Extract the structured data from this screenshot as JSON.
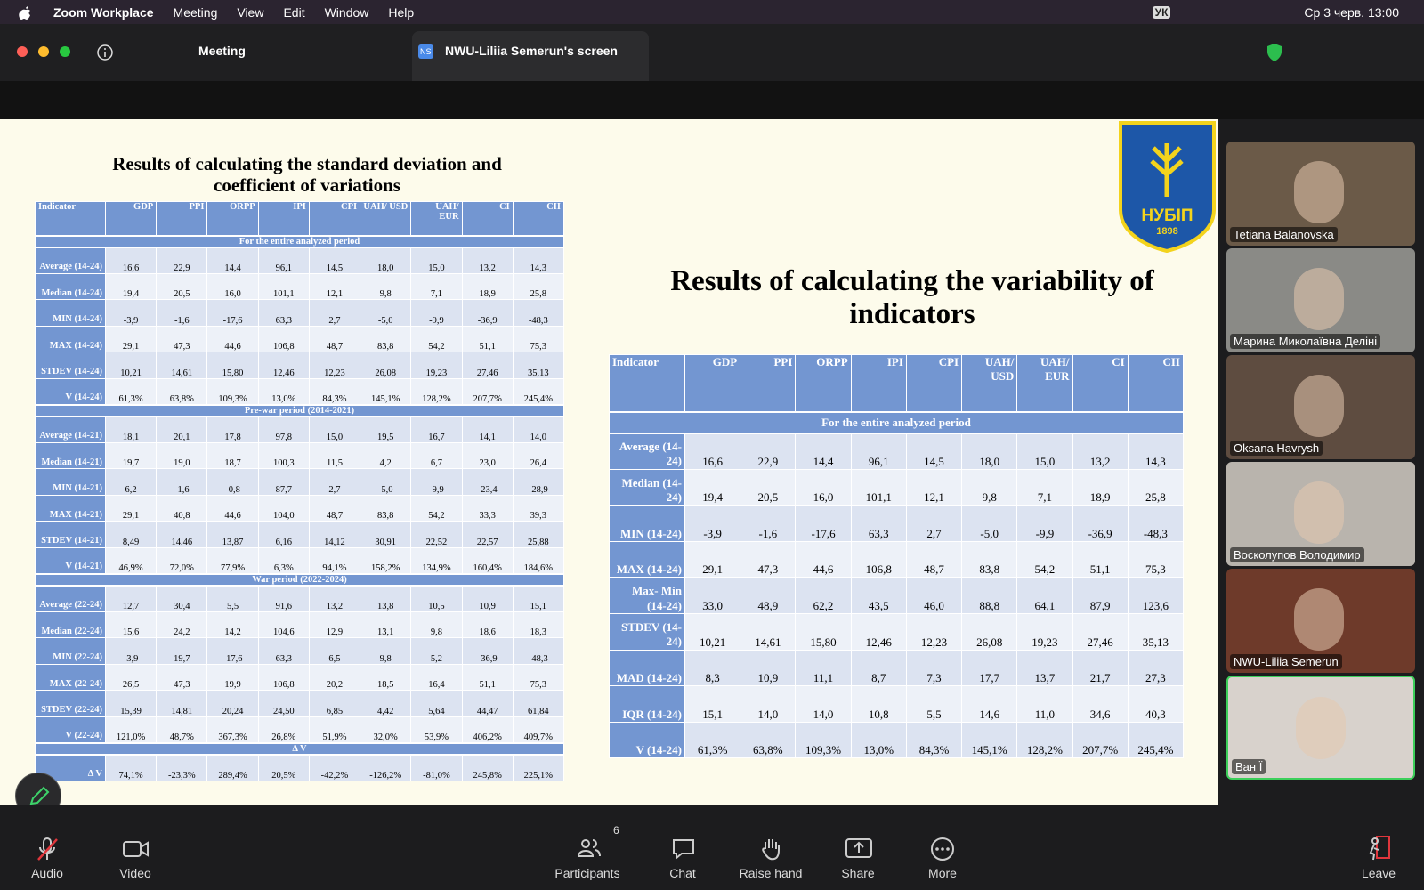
{
  "menu_bar": {
    "app": "Zoom Workplace",
    "items": [
      "Meeting",
      "View",
      "Edit",
      "Window",
      "Help"
    ],
    "keyboard": "УК",
    "datetime": "Ср 3 черв. 13:00"
  },
  "toolbar": {
    "meeting": "Meeting",
    "tab_badge": "NS",
    "share_tab": "NWU-Liliia Semerun's screen"
  },
  "slide": {
    "logo": {
      "name": "НУБІП",
      "year": "1898"
    },
    "left": {
      "title": "Results of calculating the standard deviation and coefficient of variations",
      "headers": [
        "Indicator",
        "GDP",
        "PPI",
        "ORPP",
        "IPI",
        "CPI",
        "UAH/ USD",
        "UAH/ EUR",
        "CI",
        "CII"
      ],
      "sections": [
        {
          "title": "For the entire analyzed period",
          "rows": [
            [
              "Average (14-24)",
              "16,6",
              "22,9",
              "14,4",
              "96,1",
              "14,5",
              "18,0",
              "15,0",
              "13,2",
              "14,3"
            ],
            [
              "Median (14-24)",
              "19,4",
              "20,5",
              "16,0",
              "101,1",
              "12,1",
              "9,8",
              "7,1",
              "18,9",
              "25,8"
            ],
            [
              "MIN (14-24)",
              "-3,9",
              "-1,6",
              "-17,6",
              "63,3",
              "2,7",
              "-5,0",
              "-9,9",
              "-36,9",
              "-48,3"
            ],
            [
              "MAX (14-24)",
              "29,1",
              "47,3",
              "44,6",
              "106,8",
              "48,7",
              "83,8",
              "54,2",
              "51,1",
              "75,3"
            ],
            [
              "STDEV (14-24)",
              "10,21",
              "14,61",
              "15,80",
              "12,46",
              "12,23",
              "26,08",
              "19,23",
              "27,46",
              "35,13"
            ],
            [
              "V (14-24)",
              "61,3%",
              "63,8%",
              "109,3%",
              "13,0%",
              "84,3%",
              "145,1%",
              "128,2%",
              "207,7%",
              "245,4%"
            ]
          ]
        },
        {
          "title": "Pre-war period (2014-2021)",
          "rows": [
            [
              "Average (14-21)",
              "18,1",
              "20,1",
              "17,8",
              "97,8",
              "15,0",
              "19,5",
              "16,7",
              "14,1",
              "14,0"
            ],
            [
              "Median (14-21)",
              "19,7",
              "19,0",
              "18,7",
              "100,3",
              "11,5",
              "4,2",
              "6,7",
              "23,0",
              "26,4"
            ],
            [
              "MIN (14-21)",
              "6,2",
              "-1,6",
              "-0,8",
              "87,7",
              "2,7",
              "-5,0",
              "-9,9",
              "-23,4",
              "-28,9"
            ],
            [
              "MAX (14-21)",
              "29,1",
              "40,8",
              "44,6",
              "104,0",
              "48,7",
              "83,8",
              "54,2",
              "33,3",
              "39,3"
            ],
            [
              "STDEV (14-21)",
              "8,49",
              "14,46",
              "13,87",
              "6,16",
              "14,12",
              "30,91",
              "22,52",
              "22,57",
              "25,88"
            ],
            [
              "V (14-21)",
              "46,9%",
              "72,0%",
              "77,9%",
              "6,3%",
              "94,1%",
              "158,2%",
              "134,9%",
              "160,4%",
              "184,6%"
            ]
          ]
        },
        {
          "title": "War period (2022-2024)",
          "rows": [
            [
              "Average (22-24)",
              "12,7",
              "30,4",
              "5,5",
              "91,6",
              "13,2",
              "13,8",
              "10,5",
              "10,9",
              "15,1"
            ],
            [
              "Median (22-24)",
              "15,6",
              "24,2",
              "14,2",
              "104,6",
              "12,9",
              "13,1",
              "9,8",
              "18,6",
              "18,3"
            ],
            [
              "MIN (22-24)",
              "-3,9",
              "19,7",
              "-17,6",
              "63,3",
              "6,5",
              "9,8",
              "5,2",
              "-36,9",
              "-48,3"
            ],
            [
              "MAX (22-24)",
              "26,5",
              "47,3",
              "19,9",
              "106,8",
              "20,2",
              "18,5",
              "16,4",
              "51,1",
              "75,3"
            ],
            [
              "STDEV (22-24)",
              "15,39",
              "14,81",
              "20,24",
              "24,50",
              "6,85",
              "4,42",
              "5,64",
              "44,47",
              "61,84"
            ],
            [
              "V (22-24)",
              "121,0%",
              "48,7%",
              "367,3%",
              "26,8%",
              "51,9%",
              "32,0%",
              "53,9%",
              "406,2%",
              "409,7%"
            ]
          ]
        },
        {
          "title": "Δ V",
          "rows": [
            [
              "Δ V",
              "74,1%",
              "-23,3%",
              "289,4%",
              "20,5%",
              "-42,2%",
              "-126,2%",
              "-81,0%",
              "245,8%",
              "225,1%"
            ]
          ]
        }
      ]
    },
    "right": {
      "title": "Results of calculating the variability of indicators",
      "headers": [
        "Indicator",
        "GDP",
        "PPI",
        "ORPP",
        "IPI",
        "CPI",
        "UAH/ USD",
        "UAH/ EUR",
        "CI",
        "CII"
      ],
      "sections": [
        {
          "title": "For the entire analyzed period",
          "rows": [
            [
              "Average (14-24)",
              "16,6",
              "22,9",
              "14,4",
              "96,1",
              "14,5",
              "18,0",
              "15,0",
              "13,2",
              "14,3"
            ],
            [
              "Median (14-24)",
              "19,4",
              "20,5",
              "16,0",
              "101,1",
              "12,1",
              "9,8",
              "7,1",
              "18,9",
              "25,8"
            ],
            [
              "MIN (14-24)",
              "-3,9",
              "-1,6",
              "-17,6",
              "63,3",
              "2,7",
              "-5,0",
              "-9,9",
              "-36,9",
              "-48,3"
            ],
            [
              "MAX (14-24)",
              "29,1",
              "47,3",
              "44,6",
              "106,8",
              "48,7",
              "83,8",
              "54,2",
              "51,1",
              "75,3"
            ],
            [
              "Max- Min (14-24)",
              "33,0",
              "48,9",
              "62,2",
              "43,5",
              "46,0",
              "88,8",
              "64,1",
              "87,9",
              "123,6"
            ],
            [
              "STDEV (14-24)",
              "10,21",
              "14,61",
              "15,80",
              "12,46",
              "12,23",
              "26,08",
              "19,23",
              "27,46",
              "35,13"
            ],
            [
              "MAD (14-24)",
              "8,3",
              "10,9",
              "11,1",
              "8,7",
              "7,3",
              "17,7",
              "13,7",
              "21,7",
              "27,3"
            ],
            [
              "IQR (14-24)",
              "15,1",
              "14,0",
              "14,0",
              "10,8",
              "5,5",
              "14,6",
              "11,0",
              "34,6",
              "40,3"
            ],
            [
              "V (14-24)",
              "61,3%",
              "63,8%",
              "109,3%",
              "13,0%",
              "84,3%",
              "145,1%",
              "128,2%",
              "207,7%",
              "245,4%"
            ]
          ]
        }
      ]
    }
  },
  "participants": [
    "Tetiana Balanovska",
    "Марина Миколаївна Деліні",
    "Oksana Havrysh",
    "Восколупов Володимир",
    "NWU-Liliia Semerun",
    "Ван Ї"
  ],
  "controls": {
    "audio": "Audio",
    "video": "Video",
    "participants": "Participants",
    "participant_count": 6,
    "chat": "Chat",
    "raise_hand": "Raise hand",
    "share": "Share",
    "more": "More",
    "leave": "Leave"
  }
}
